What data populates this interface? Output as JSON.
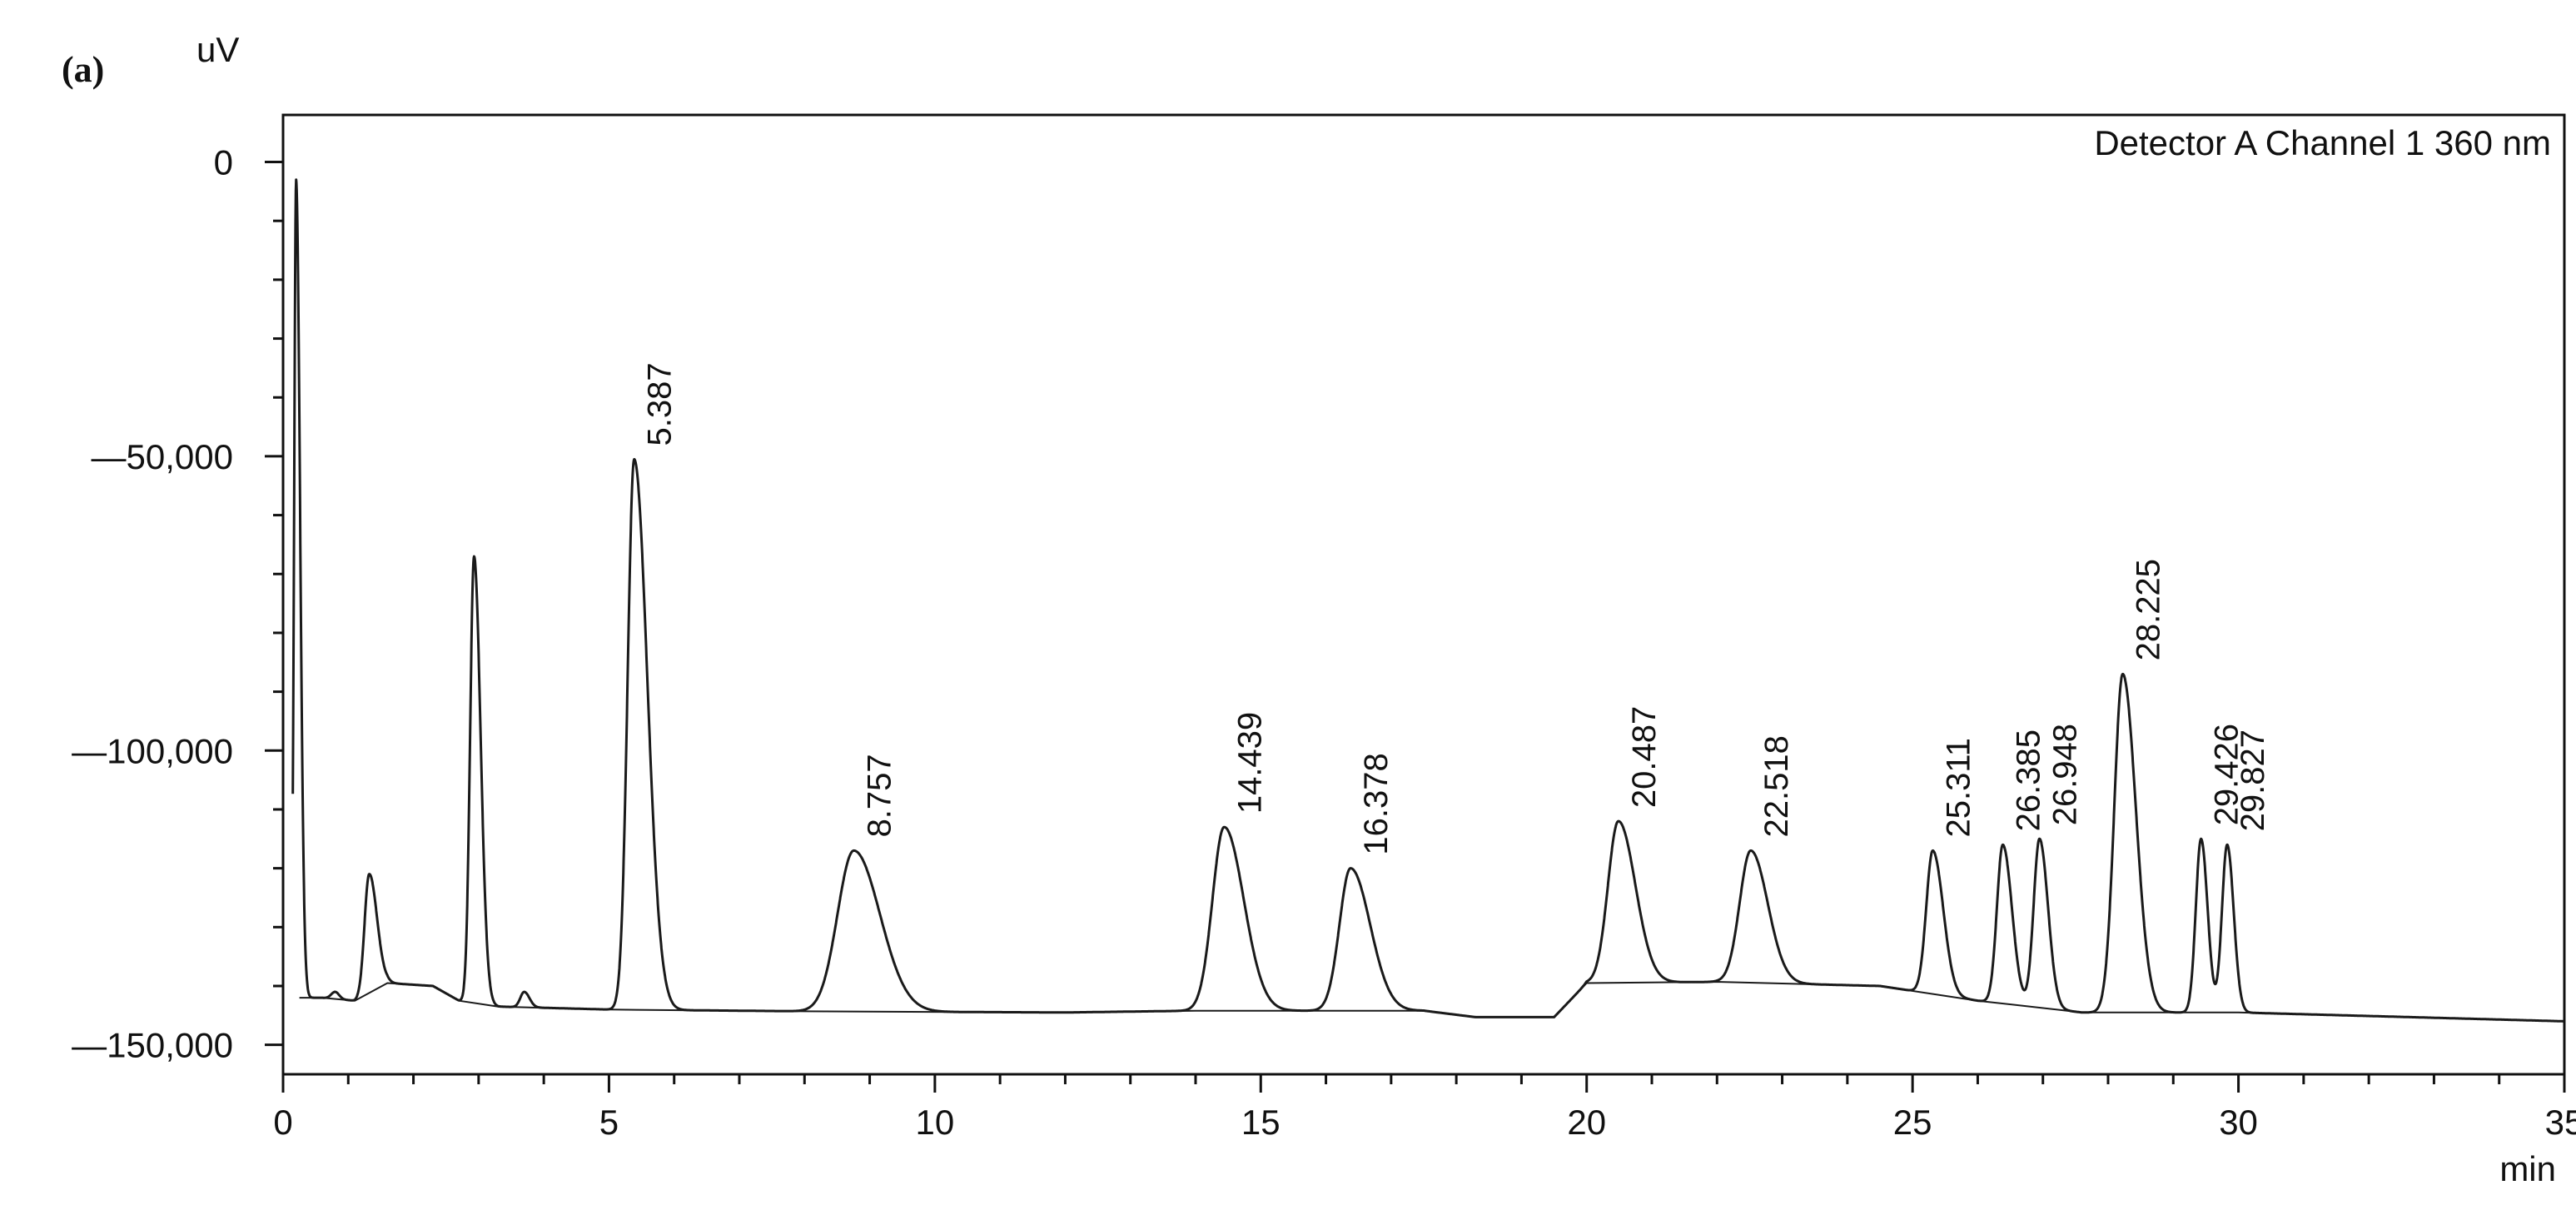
{
  "panel_label": "(a)",
  "chart_data": {
    "type": "line",
    "title": "",
    "ylabel": "uV",
    "xlabel": "min",
    "legend": "Detector A Channel 1 360 nm",
    "xlim": [
      0,
      35
    ],
    "ylim": [
      -155000,
      8000
    ],
    "x_ticks": [
      0,
      5,
      10,
      15,
      20,
      25,
      30,
      35
    ],
    "x_tick_labels": [
      "0",
      "5",
      "10",
      "15",
      "20",
      "25",
      "30",
      "35"
    ],
    "y_ticks": [
      0,
      -50000,
      -100000,
      -150000
    ],
    "y_tick_labels": [
      "0",
      "—50,000",
      "—100,000",
      "—150,000"
    ],
    "grid": false,
    "colors": {
      "trace": "#1a1a1a",
      "axes": "#111111",
      "background": "#ffffff"
    },
    "baseline_points": [
      [
        0.25,
        -142000
      ],
      [
        0.6,
        -142000
      ],
      [
        1.1,
        -142500
      ],
      [
        1.6,
        -139500
      ],
      [
        2.3,
        -140000
      ],
      [
        2.7,
        -142500
      ],
      [
        3.3,
        -143500
      ],
      [
        5.0,
        -144000
      ],
      [
        8.0,
        -144300
      ],
      [
        12.0,
        -144500
      ],
      [
        14.0,
        -144200
      ],
      [
        17.5,
        -144200
      ],
      [
        18.3,
        -145300
      ],
      [
        19.5,
        -145300
      ],
      [
        20.0,
        -139500
      ],
      [
        22.0,
        -139300
      ],
      [
        24.5,
        -140000
      ],
      [
        26.0,
        -142500
      ],
      [
        27.6,
        -144500
      ],
      [
        30.0,
        -144500
      ],
      [
        35.0,
        -146000
      ]
    ],
    "peaks": [
      {
        "rt": 0.2,
        "height": -3000,
        "label": ""
      },
      {
        "rt": 0.8,
        "height": -141000,
        "label": ""
      },
      {
        "rt": 1.32,
        "height": -121000,
        "label": ""
      },
      {
        "rt": 2.93,
        "height": -67000,
        "label": ""
      },
      {
        "rt": 3.7,
        "height": -141000,
        "label": ""
      },
      {
        "rt": 5.387,
        "height": -50500,
        "label": "5.387"
      },
      {
        "rt": 8.757,
        "height": -117000,
        "label": "8.757"
      },
      {
        "rt": 14.439,
        "height": -113000,
        "label": "14.439"
      },
      {
        "rt": 16.378,
        "height": -120000,
        "label": "16.378"
      },
      {
        "rt": 20.487,
        "height": -112000,
        "label": "20.487"
      },
      {
        "rt": 22.518,
        "height": -117000,
        "label": "22.518"
      },
      {
        "rt": 25.311,
        "height": -117000,
        "label": "25.311"
      },
      {
        "rt": 26.385,
        "height": -116000,
        "label": "26.385"
      },
      {
        "rt": 26.948,
        "height": -115000,
        "label": "26.948"
      },
      {
        "rt": 28.225,
        "height": -87000,
        "label": "28.225"
      },
      {
        "rt": 29.426,
        "height": -115000,
        "label": "29.426"
      },
      {
        "rt": 29.827,
        "height": -116000,
        "label": "29.827"
      }
    ]
  }
}
